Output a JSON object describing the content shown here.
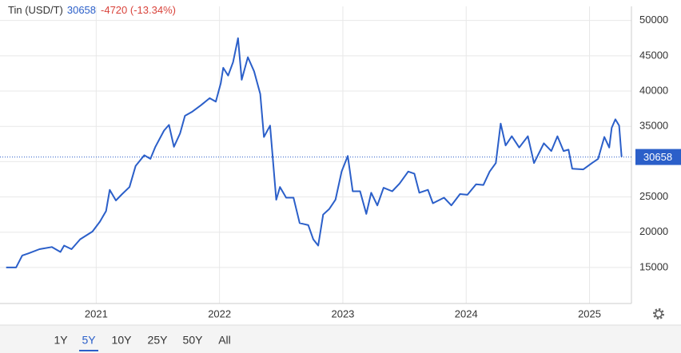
{
  "chart_data": {
    "type": "line",
    "title": "Tin (USD/T)",
    "change_label": "-4720 (-13.34%)",
    "color": "#2b5fc9",
    "x": [
      2020.27,
      2020.35,
      2020.4,
      2020.45,
      2020.54,
      2020.64,
      2020.71,
      2020.74,
      2020.8,
      2020.87,
      2020.97,
      2021.03,
      2021.08,
      2021.11,
      2021.16,
      2021.21,
      2021.27,
      2021.32,
      2021.39,
      2021.44,
      2021.48,
      2021.55,
      2021.59,
      2021.63,
      2021.68,
      2021.72,
      2021.78,
      2021.85,
      2021.92,
      2021.97,
      2022.01,
      2022.03,
      2022.07,
      2022.11,
      2022.15,
      2022.18,
      2022.23,
      2022.28,
      2022.33,
      2022.36,
      2022.41,
      2022.46,
      2022.49,
      2022.54,
      2022.6,
      2022.65,
      2022.72,
      2022.76,
      2022.8,
      2022.84,
      2022.89,
      2022.94,
      2022.99,
      2023.04,
      2023.08,
      2023.14,
      2023.19,
      2023.23,
      2023.28,
      2023.33,
      2023.4,
      2023.46,
      2023.53,
      2023.58,
      2023.62,
      2023.69,
      2023.73,
      2023.82,
      2023.88,
      2023.95,
      2024.01,
      2024.08,
      2024.14,
      2024.19,
      2024.24,
      2024.28,
      2024.32,
      2024.37,
      2024.43,
      2024.5,
      2024.55,
      2024.63,
      2024.69,
      2024.74,
      2024.79,
      2024.83,
      2024.86,
      2024.95,
      2025.02,
      2025.07,
      2025.12,
      2025.16,
      2025.18,
      2025.21,
      2025.24,
      2025.26
    ],
    "values": [
      15000,
      15000,
      16700,
      17000,
      17600,
      17900,
      17200,
      18100,
      17600,
      19000,
      20100,
      21500,
      23000,
      26000,
      24500,
      25400,
      26400,
      29400,
      30900,
      30400,
      32100,
      34400,
      35200,
      32100,
      34000,
      36500,
      37100,
      38000,
      39000,
      38500,
      41100,
      43300,
      42200,
      44100,
      47500,
      41600,
      44800,
      42800,
      39600,
      33500,
      35100,
      24600,
      26400,
      24900,
      24900,
      21300,
      21000,
      19000,
      18100,
      22500,
      23300,
      24600,
      28600,
      30800,
      25800,
      25800,
      22600,
      25600,
      23800,
      26300,
      25800,
      26900,
      28600,
      28300,
      25600,
      26000,
      24100,
      24900,
      23800,
      25400,
      25300,
      26800,
      26700,
      28600,
      29800,
      35400,
      32300,
      33600,
      32000,
      33600,
      29800,
      32600,
      31500,
      33600,
      31500,
      31700,
      29000,
      28900,
      29800,
      30400,
      33500,
      32000,
      34800,
      36000,
      35100,
      30658
    ],
    "xlim": [
      2020.22,
      2025.34
    ],
    "xticks": [
      2021,
      2022,
      2023,
      2024,
      2025
    ],
    "ylim": [
      9900,
      52000
    ],
    "yticks": [
      15000,
      20000,
      25000,
      30000,
      35000,
      40000,
      45000,
      50000
    ],
    "grid": true,
    "range_buttons": [
      "1Y",
      "5Y",
      "10Y",
      "25Y",
      "50Y",
      "All"
    ],
    "selected_range": "5Y"
  }
}
